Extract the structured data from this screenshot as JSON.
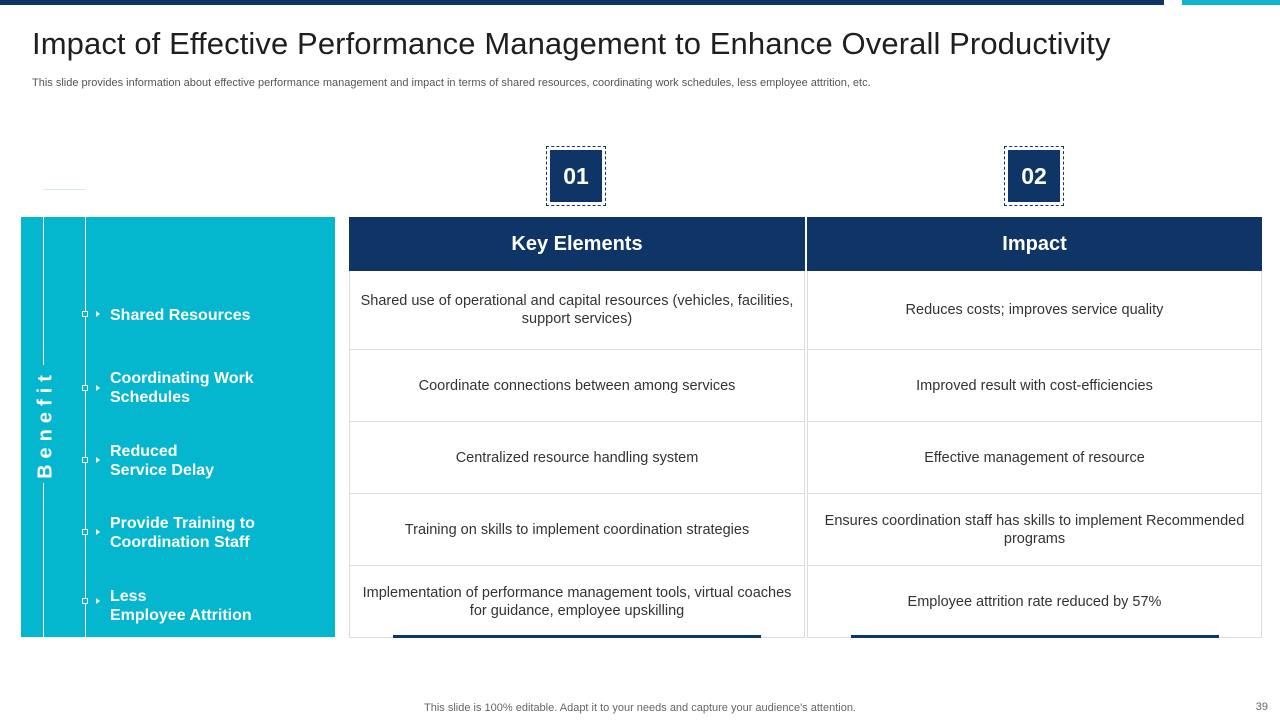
{
  "header": {
    "title": "Impact of Effective Performance Management to Enhance Overall Productivity",
    "subtitle": "This slide provides information about effective performance management and impact in terms of shared resources, coordinating work schedules, less employee attrition, etc."
  },
  "benefit": {
    "heading": "Benefit",
    "items": [
      "Shared Resources",
      "Coordinating  Work\nSchedules",
      "Reduced\nService Delay",
      "Provide Training to\nCoordination Staff",
      "Less\nEmployee Attrition"
    ]
  },
  "columns": [
    {
      "number": "01",
      "heading": "Key Elements",
      "rows": [
        "Shared use of operational and capital resources (vehicles, facilities, support services)",
        "Coordinate connections between among services",
        "Centralized resource handling system",
        "Training on skills to implement coordination strategies",
        "Implementation of performance management tools, virtual coaches for guidance, employee upskilling"
      ]
    },
    {
      "number": "02",
      "heading": "Impact",
      "rows": [
        "Reduces costs; improves service quality",
        "Improved result with cost-efficiencies",
        "Effective management of resource",
        "Ensures coordination staff has skills to implement Recommended programs",
        "Employee attrition rate reduced by 57%"
      ]
    }
  ],
  "footer": {
    "note": "This slide is 100% editable. Adapt it to your needs and capture your audience's attention.",
    "page_number": "39"
  },
  "colors": {
    "navy": "#0e3566",
    "cyan": "#05b6cf"
  }
}
